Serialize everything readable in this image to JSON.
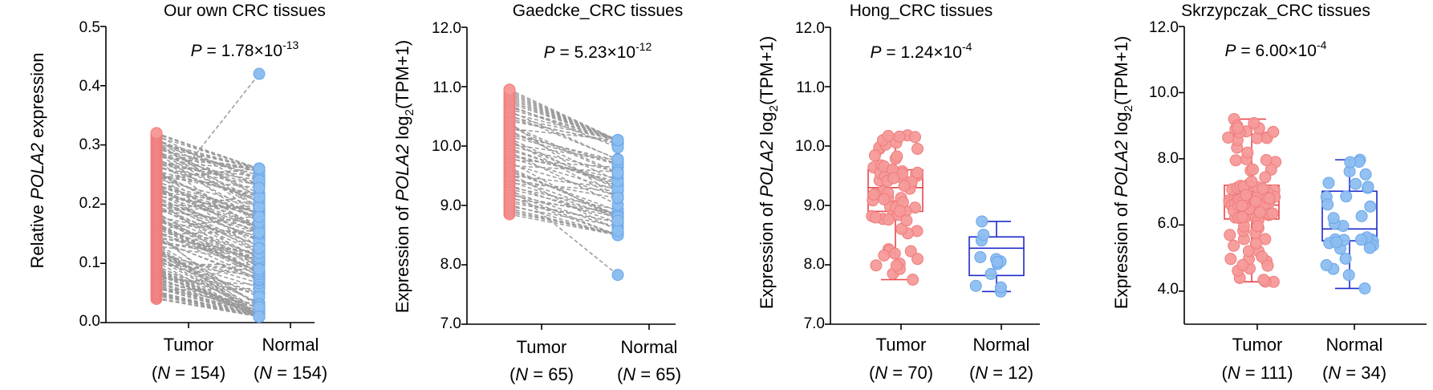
{
  "colors": {
    "tumor_fill": "#F69A99",
    "tumor_edge": "#EF7C7C",
    "tumor_box": "#E8454B",
    "normal_fill": "#8DBEF0",
    "normal_edge": "#6AA7EA",
    "normal_box": "#1E2ACB",
    "pair_line": "#9A9A9A",
    "axis": "#000000"
  },
  "chart_data": [
    {
      "type": "paired-dot",
      "title": "Our own CRC tissues",
      "ylabel_parts": [
        "Relative ",
        "POLA2",
        " expression"
      ],
      "p_value": {
        "prefix": "P",
        "eq": " = 1.78×10",
        "exp": "-13"
      },
      "ylim": [
        0,
        0.5
      ],
      "yticks": [
        0.0,
        0.1,
        0.2,
        0.3,
        0.4,
        0.5
      ],
      "tick_labels": [
        "0.0",
        "0.1",
        "0.2",
        "0.3",
        "0.4",
        "0.5"
      ],
      "groups": [
        {
          "name": "Tumor",
          "n_label": "(N = 154)",
          "n_prefix": "(",
          "n_var": "N",
          "n_rest": " = 154)",
          "n": 154,
          "range": [
            0.04,
            0.32
          ]
        },
        {
          "name": "Normal",
          "n_label": "(N = 154)",
          "n_prefix": "(",
          "n_var": "N",
          "n_rest": " = 154)",
          "n": 154,
          "range": [
            0.01,
            0.26
          ]
        }
      ],
      "outliers": [
        {
          "tumor": 0.2,
          "normal": 0.42
        }
      ]
    },
    {
      "type": "paired-dot",
      "title": "Gaedcke_CRC tissues",
      "ylabel_parts": [
        "Expression of ",
        "POLA2",
        " log",
        "2",
        "(TPM+1)"
      ],
      "p_value": {
        "prefix": "P",
        "eq": " = 5.23×10",
        "exp": "-12"
      },
      "ylim": [
        7.0,
        12.0
      ],
      "yticks": [
        7.0,
        8.0,
        9.0,
        10.0,
        11.0,
        12.0
      ],
      "tick_labels": [
        "7.0",
        "8.0",
        "9.0",
        "10.0",
        "11.0",
        "12.0"
      ],
      "groups": [
        {
          "name": "Tumor",
          "n_prefix": "(",
          "n_var": "N",
          "n_rest": " = 65)",
          "n": 65,
          "range": [
            8.85,
            10.95
          ]
        },
        {
          "name": "Normal",
          "n_prefix": "(",
          "n_var": "N",
          "n_rest": " = 65)",
          "n": 65,
          "range": [
            8.5,
            10.1
          ]
        }
      ],
      "outliers": [
        {
          "tumor": 9.3,
          "normal": 7.83
        }
      ]
    },
    {
      "type": "box-dot",
      "title": "Hong_CRC tissues",
      "ylabel_parts": [
        "Expression of ",
        "POLA2",
        " log",
        "2",
        "(TPM+1)"
      ],
      "p_value": {
        "prefix": "P",
        "eq": " = 1.24×10",
        "exp": "-4"
      },
      "ylim": [
        7.0,
        12.0
      ],
      "yticks": [
        7.0,
        8.0,
        9.0,
        10.0,
        11.0,
        12.0
      ],
      "tick_labels": [
        "7.0",
        "8.0",
        "9.0",
        "10.0",
        "11.0",
        "12.0"
      ],
      "groups": [
        {
          "name": "Tumor",
          "n_prefix": "(",
          "n_var": "N",
          "n_rest": " = 70)",
          "n": 70,
          "min": 7.75,
          "q1": 8.9,
          "median": 9.3,
          "q3": 9.6,
          "max": 10.18
        },
        {
          "name": "Normal",
          "n_prefix": "(",
          "n_var": "N",
          "n_rest": " = 12)",
          "n": 12,
          "min": 7.55,
          "q1": 7.82,
          "median": 8.28,
          "q3": 8.47,
          "max": 8.73
        }
      ]
    },
    {
      "type": "box-dot",
      "title": "Skrzypczak_CRC tissues",
      "ylabel_parts": [
        "Expression of ",
        "POLA2",
        " log",
        "2",
        "(TPM+1)"
      ],
      "p_value": {
        "prefix": "P",
        "eq": " = 6.00×10",
        "exp": "-4"
      },
      "ylim": [
        3.0,
        12.0
      ],
      "yticks": [
        4.0,
        6.0,
        8.0,
        10.0,
        12.0
      ],
      "tick_labels": [
        "4.0",
        "6.0",
        "8.0",
        "10.0",
        "12.0"
      ],
      "groups": [
        {
          "name": "Tumor",
          "n_prefix": "(",
          "n_var": "N",
          "n_rest": " = 111)",
          "n": 111,
          "min": 4.28,
          "q1": 6.18,
          "median": 6.6,
          "q3": 7.2,
          "max": 9.2
        },
        {
          "name": "Normal",
          "n_prefix": "(",
          "n_var": "N",
          "n_rest": " = 34)",
          "n": 34,
          "min": 4.08,
          "q1": 5.52,
          "median": 5.88,
          "q3": 7.02,
          "max": 7.97
        }
      ]
    }
  ]
}
